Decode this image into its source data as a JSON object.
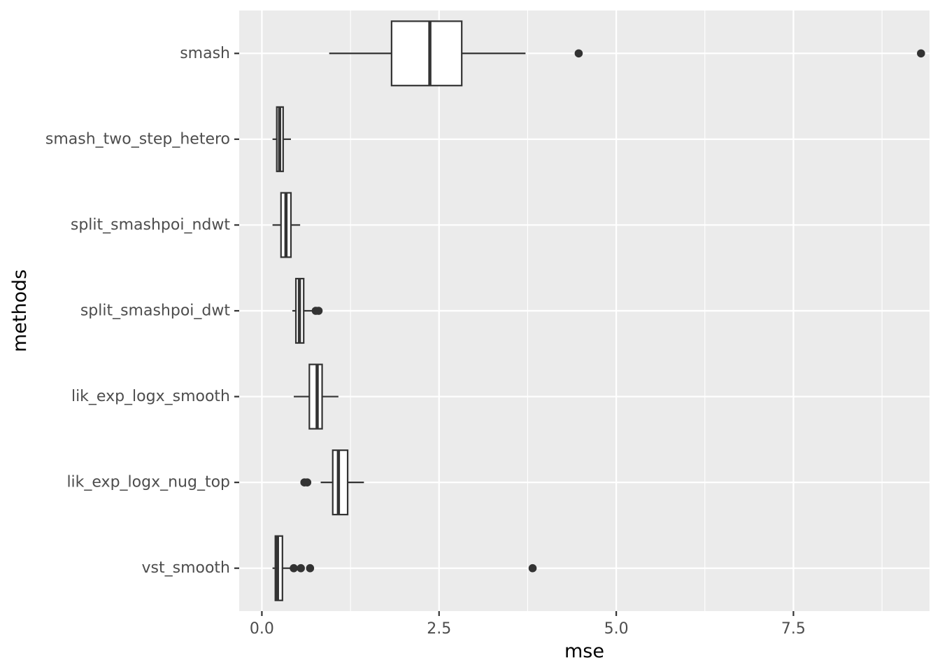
{
  "chart_data": {
    "type": "boxplot",
    "orientation": "horizontal",
    "xlabel": "mse",
    "ylabel": "methods",
    "xlim": [
      -0.32,
      9.42
    ],
    "x_ticks": [
      0,
      2.5,
      5,
      7.5
    ],
    "x_tick_labels": [
      "0.0",
      "2.5",
      "5.0",
      "7.5"
    ],
    "grid": true,
    "legend": "none",
    "colors": {
      "panel_background": "#ebebeb",
      "grid_major": "#ffffff",
      "box_fill": "#ffffff",
      "box_stroke": "#333333",
      "outlier": "#333333"
    },
    "categories": [
      "smash",
      "smash_two_step_hetero",
      "split_smashpoi_ndwt",
      "split_smashpoi_dwt",
      "lik_exp_logx_smooth",
      "lik_exp_logx_nug_top",
      "vst_smooth"
    ],
    "boxes": [
      {
        "method": "smash",
        "whisker_low": 0.95,
        "q1": 1.83,
        "median": 2.37,
        "q3": 2.82,
        "whisker_high": 3.72,
        "outliers": [
          4.47,
          9.3
        ]
      },
      {
        "method": "smash_two_step_hetero",
        "whisker_low": 0.15,
        "q1": 0.21,
        "median": 0.25,
        "q3": 0.3,
        "whisker_high": 0.41,
        "outliers": []
      },
      {
        "method": "split_smashpoi_ndwt",
        "whisker_low": 0.15,
        "q1": 0.27,
        "median": 0.34,
        "q3": 0.41,
        "whisker_high": 0.54,
        "outliers": []
      },
      {
        "method": "split_smashpoi_dwt",
        "whisker_low": 0.43,
        "q1": 0.48,
        "median": 0.53,
        "q3": 0.59,
        "whisker_high": 0.74,
        "outliers": [
          0.76,
          0.8
        ]
      },
      {
        "method": "lik_exp_logx_smooth",
        "whisker_low": 0.45,
        "q1": 0.67,
        "median": 0.78,
        "q3": 0.85,
        "whisker_high": 1.08,
        "outliers": []
      },
      {
        "method": "lik_exp_logx_nug_top",
        "whisker_low": 0.83,
        "q1": 1.0,
        "median": 1.08,
        "q3": 1.21,
        "whisker_high": 1.44,
        "outliers": [
          0.6,
          0.64
        ]
      },
      {
        "method": "vst_smooth",
        "whisker_low": 0.15,
        "q1": 0.19,
        "median": 0.22,
        "q3": 0.29,
        "whisker_high": 0.4,
        "outliers": [
          0.45,
          0.55,
          0.68,
          3.82
        ]
      }
    ]
  }
}
